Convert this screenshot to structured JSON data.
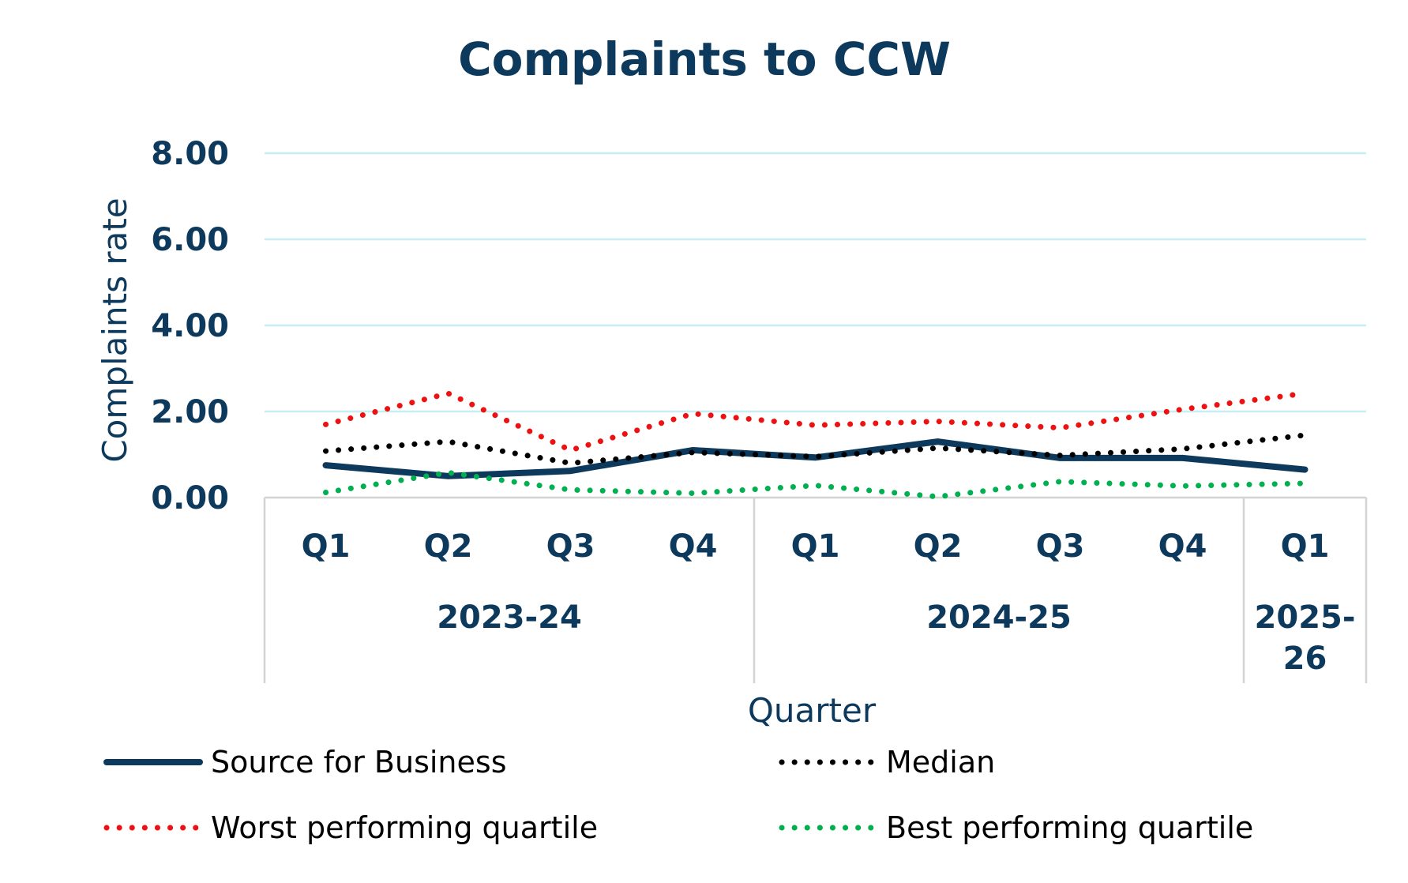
{
  "chart_data": {
    "type": "line",
    "title": "Complaints to CCW",
    "ylabel": "Complaints rate",
    "xlabel": "Quarter",
    "ylim": [
      0,
      8
    ],
    "yticks": [
      0,
      2,
      4,
      6,
      8
    ],
    "ytick_labels": [
      "0.00",
      "2.00",
      "4.00",
      "6.00",
      "8.00"
    ],
    "categories": [
      "Q1",
      "Q2",
      "Q3",
      "Q4",
      "Q1",
      "Q2",
      "Q3",
      "Q4",
      "Q1"
    ],
    "groups": [
      {
        "label": "2023-24",
        "count": 4
      },
      {
        "label": "2024-25",
        "count": 4
      },
      {
        "label": "2025-26",
        "label_lines": [
          "2025-",
          "26"
        ],
        "count": 1
      }
    ],
    "grid": true,
    "legend_position": "bottom",
    "series": [
      {
        "name": "Source for Business",
        "color": "#0d3a5c",
        "style": "solid",
        "values": [
          0.75,
          0.5,
          0.62,
          1.1,
          0.93,
          1.3,
          0.92,
          0.92,
          0.65
        ]
      },
      {
        "name": "Median",
        "color": "#000000",
        "style": "dotted",
        "values": [
          1.08,
          1.3,
          0.8,
          1.05,
          0.95,
          1.15,
          0.98,
          1.13,
          1.45
        ]
      },
      {
        "name": "Worst performing quartile",
        "color": "#ee1111",
        "style": "dotted",
        "values": [
          1.7,
          2.42,
          1.1,
          1.95,
          1.68,
          1.77,
          1.62,
          2.05,
          2.42
        ]
      },
      {
        "name": "Best performing quartile",
        "color": "#00b050",
        "style": "dotted",
        "values": [
          0.12,
          0.58,
          0.18,
          0.1,
          0.28,
          0.02,
          0.37,
          0.27,
          0.33
        ]
      }
    ]
  }
}
